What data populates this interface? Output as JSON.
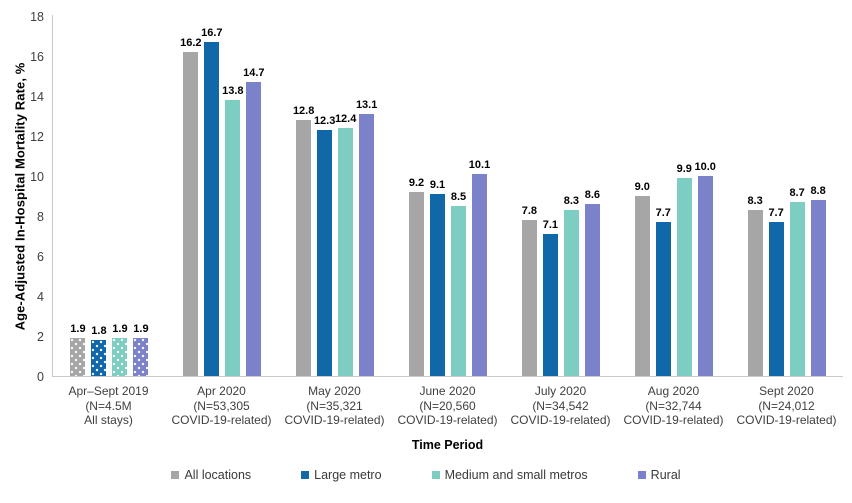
{
  "chart_data": {
    "type": "bar",
    "title": "",
    "ylabel": "Age-Adjusted In-Hospital Mortality Rate, %",
    "xlabel": "Time Period",
    "ylim": [
      0,
      18
    ],
    "yticks": [
      0,
      2,
      4,
      6,
      8,
      10,
      12,
      14,
      16,
      18
    ],
    "grid": false,
    "legend_position": "bottom",
    "categories": [
      "Apr–Sept 2019\n(N=4.5M\nAll stays)",
      "Apr 2020\n(N=53,305\nCOVID-19-related)",
      "May 2020\n(N=35,321\nCOVID-19-related)",
      "June 2020\n(N=20,560\nCOVID-19-related)",
      "July 2020\n(N=34,542\nCOVID-19-related)",
      "Aug 2020\n(N=32,744\nCOVID-19-related)",
      "Sept 2020\n(N=24,012\nCOVID-19-related)"
    ],
    "series": [
      {
        "name": "All locations",
        "color": "#a6a6a6",
        "values": [
          1.9,
          16.2,
          12.8,
          9.2,
          7.8,
          9.0,
          8.3
        ]
      },
      {
        "name": "Large metro",
        "color": "#1168a9",
        "values": [
          1.8,
          16.7,
          12.3,
          9.1,
          7.1,
          7.7,
          7.7
        ]
      },
      {
        "name": "Medium and small metros",
        "color": "#7dcdc3",
        "values": [
          1.9,
          13.8,
          12.4,
          8.5,
          8.3,
          9.9,
          8.7
        ]
      },
      {
        "name": "Rural",
        "color": "#7b82c9",
        "values": [
          1.9,
          14.7,
          13.1,
          10.1,
          8.6,
          10.0,
          8.8
        ]
      }
    ],
    "patterned_category_index": 0,
    "axis_color": "#c9c9c9",
    "tick_label_color": "#3f3f3f",
    "data_label_color": "#000000"
  }
}
